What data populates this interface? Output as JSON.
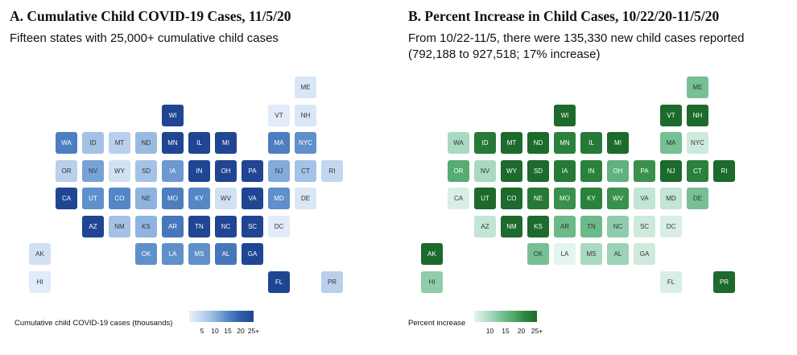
{
  "colors": {
    "blue_scale": [
      "#e8f0fb",
      "#c3d6ef",
      "#8fb4df",
      "#5487c6",
      "#2f5ea9",
      "#1f4593"
    ],
    "green_scale": [
      "#e4f4ee",
      "#b6e0cc",
      "#82c5a0",
      "#56ac72",
      "#2f8840",
      "#1c6a2c"
    ]
  },
  "chart_data": [
    {
      "type": "heatmap",
      "title": "A. Cumulative Child COVID-19 Cases, 11/5/20",
      "subtitle": "Fifteen states with 25,000+ cumulative child cases",
      "legend": {
        "label": "Cumulative child COVID-19 cases (thousands)",
        "ticks": [
          "5",
          "10",
          "15",
          "20",
          "25+"
        ],
        "range": [
          0,
          25
        ],
        "position": "bottom-left"
      },
      "states": [
        {
          "s": "ME",
          "row": 0,
          "col": 10,
          "v": 2
        },
        {
          "s": "WI",
          "row": 1,
          "col": 5,
          "v": 25
        },
        {
          "s": "VT",
          "row": 1,
          "col": 9,
          "v": 1
        },
        {
          "s": "NH",
          "row": 1,
          "col": 10,
          "v": 2
        },
        {
          "s": "WA",
          "row": 2,
          "col": 1,
          "v": 16
        },
        {
          "s": "ID",
          "row": 2,
          "col": 2,
          "v": 8
        },
        {
          "s": "MT",
          "row": 2,
          "col": 3,
          "v": 6
        },
        {
          "s": "ND",
          "row": 2,
          "col": 4,
          "v": 9
        },
        {
          "s": "MN",
          "row": 2,
          "col": 5,
          "v": 25
        },
        {
          "s": "IL",
          "row": 2,
          "col": 6,
          "v": 25
        },
        {
          "s": "MI",
          "row": 2,
          "col": 7,
          "v": 25
        },
        {
          "s": "MA",
          "row": 2,
          "col": 9,
          "v": 16
        },
        {
          "s": "NYC",
          "row": 2,
          "col": 10,
          "v": 14
        },
        {
          "s": "OR",
          "row": 3,
          "col": 1,
          "v": 6
        },
        {
          "s": "NV",
          "row": 3,
          "col": 2,
          "v": 12
        },
        {
          "s": "WY",
          "row": 3,
          "col": 3,
          "v": 3
        },
        {
          "s": "SD",
          "row": 3,
          "col": 4,
          "v": 8
        },
        {
          "s": "IA",
          "row": 3,
          "col": 5,
          "v": 13
        },
        {
          "s": "IN",
          "row": 3,
          "col": 6,
          "v": 25
        },
        {
          "s": "OH",
          "row": 3,
          "col": 7,
          "v": 25
        },
        {
          "s": "PA",
          "row": 3,
          "col": 8,
          "v": 25
        },
        {
          "s": "NJ",
          "row": 3,
          "col": 9,
          "v": 11
        },
        {
          "s": "CT",
          "row": 3,
          "col": 10,
          "v": 8
        },
        {
          "s": "RI",
          "row": 3,
          "col": 11,
          "v": 5
        },
        {
          "s": "CA",
          "row": 4,
          "col": 1,
          "v": 25
        },
        {
          "s": "UT",
          "row": 4,
          "col": 2,
          "v": 14
        },
        {
          "s": "CO",
          "row": 4,
          "col": 3,
          "v": 15
        },
        {
          "s": "NE",
          "row": 4,
          "col": 4,
          "v": 10
        },
        {
          "s": "MO",
          "row": 4,
          "col": 5,
          "v": 16
        },
        {
          "s": "KY",
          "row": 4,
          "col": 6,
          "v": 15
        },
        {
          "s": "WV",
          "row": 4,
          "col": 7,
          "v": 3
        },
        {
          "s": "VA",
          "row": 4,
          "col": 8,
          "v": 25
        },
        {
          "s": "MD",
          "row": 4,
          "col": 9,
          "v": 14
        },
        {
          "s": "DE",
          "row": 4,
          "col": 10,
          "v": 2
        },
        {
          "s": "AZ",
          "row": 5,
          "col": 2,
          "v": 25
        },
        {
          "s": "NM",
          "row": 5,
          "col": 3,
          "v": 8
        },
        {
          "s": "KS",
          "row": 5,
          "col": 4,
          "v": 10
        },
        {
          "s": "AR",
          "row": 5,
          "col": 5,
          "v": 17
        },
        {
          "s": "TN",
          "row": 5,
          "col": 6,
          "v": 25
        },
        {
          "s": "NC",
          "row": 5,
          "col": 7,
          "v": 25
        },
        {
          "s": "SC",
          "row": 5,
          "col": 8,
          "v": 25
        },
        {
          "s": "DC",
          "row": 5,
          "col": 9,
          "v": 1
        },
        {
          "s": "AK",
          "row": 6,
          "col": 0,
          "v": 3
        },
        {
          "s": "OK",
          "row": 6,
          "col": 4,
          "v": 14
        },
        {
          "s": "LA",
          "row": 6,
          "col": 5,
          "v": 14
        },
        {
          "s": "MS",
          "row": 6,
          "col": 6,
          "v": 14
        },
        {
          "s": "AL",
          "row": 6,
          "col": 7,
          "v": 17
        },
        {
          "s": "GA",
          "row": 6,
          "col": 8,
          "v": 25
        },
        {
          "s": "HI",
          "row": 7,
          "col": 0,
          "v": 1
        },
        {
          "s": "FL",
          "row": 7,
          "col": 9,
          "v": 25
        },
        {
          "s": "PR",
          "row": 7,
          "col": 11,
          "v": 6
        }
      ]
    },
    {
      "type": "heatmap",
      "title": "B. Percent Increase in Child Cases, 10/22/20-11/5/20",
      "subtitle": "From 10/22-11/5, there were 135,330 new child cases reported (792,188 to 927,518; 17% increase)",
      "legend": {
        "label": "Percent increase",
        "ticks": [
          "10",
          "15",
          "20",
          "25+"
        ],
        "range": [
          5,
          25
        ],
        "position": "bottom-left"
      },
      "states": [
        {
          "s": "ME",
          "row": 0,
          "col": 10,
          "v": 14
        },
        {
          "s": "WI",
          "row": 1,
          "col": 5,
          "v": 25
        },
        {
          "s": "VT",
          "row": 1,
          "col": 9,
          "v": 25
        },
        {
          "s": "NH",
          "row": 1,
          "col": 10,
          "v": 25
        },
        {
          "s": "WA",
          "row": 2,
          "col": 1,
          "v": 10
        },
        {
          "s": "ID",
          "row": 2,
          "col": 2,
          "v": 23
        },
        {
          "s": "MT",
          "row": 2,
          "col": 3,
          "v": 25
        },
        {
          "s": "ND",
          "row": 2,
          "col": 4,
          "v": 25
        },
        {
          "s": "MN",
          "row": 2,
          "col": 5,
          "v": 22
        },
        {
          "s": "IL",
          "row": 2,
          "col": 6,
          "v": 23
        },
        {
          "s": "MI",
          "row": 2,
          "col": 7,
          "v": 25
        },
        {
          "s": "MA",
          "row": 2,
          "col": 9,
          "v": 14
        },
        {
          "s": "NYC",
          "row": 2,
          "col": 10,
          "v": 7
        },
        {
          "s": "OR",
          "row": 3,
          "col": 1,
          "v": 17
        },
        {
          "s": "NV",
          "row": 3,
          "col": 2,
          "v": 10
        },
        {
          "s": "WY",
          "row": 3,
          "col": 3,
          "v": 25
        },
        {
          "s": "SD",
          "row": 3,
          "col": 4,
          "v": 25
        },
        {
          "s": "IA",
          "row": 3,
          "col": 5,
          "v": 23
        },
        {
          "s": "IN",
          "row": 3,
          "col": 6,
          "v": 22
        },
        {
          "s": "OH",
          "row": 3,
          "col": 7,
          "v": 16
        },
        {
          "s": "PA",
          "row": 3,
          "col": 8,
          "v": 20
        },
        {
          "s": "NJ",
          "row": 3,
          "col": 9,
          "v": 25
        },
        {
          "s": "CT",
          "row": 3,
          "col": 10,
          "v": 22
        },
        {
          "s": "RI",
          "row": 3,
          "col": 11,
          "v": 25
        },
        {
          "s": "CA",
          "row": 4,
          "col": 1,
          "v": 6
        },
        {
          "s": "UT",
          "row": 4,
          "col": 2,
          "v": 25
        },
        {
          "s": "CO",
          "row": 4,
          "col": 3,
          "v": 25
        },
        {
          "s": "NE",
          "row": 4,
          "col": 4,
          "v": 23
        },
        {
          "s": "MO",
          "row": 4,
          "col": 5,
          "v": 20
        },
        {
          "s": "KY",
          "row": 4,
          "col": 6,
          "v": 22
        },
        {
          "s": "WV",
          "row": 4,
          "col": 7,
          "v": 20
        },
        {
          "s": "VA",
          "row": 4,
          "col": 8,
          "v": 8
        },
        {
          "s": "MD",
          "row": 4,
          "col": 9,
          "v": 8
        },
        {
          "s": "DE",
          "row": 4,
          "col": 10,
          "v": 14
        },
        {
          "s": "AZ",
          "row": 5,
          "col": 2,
          "v": 8
        },
        {
          "s": "NM",
          "row": 5,
          "col": 3,
          "v": 25
        },
        {
          "s": "KS",
          "row": 5,
          "col": 4,
          "v": 25
        },
        {
          "s": "AR",
          "row": 5,
          "col": 5,
          "v": 15
        },
        {
          "s": "TN",
          "row": 5,
          "col": 6,
          "v": 15
        },
        {
          "s": "NC",
          "row": 5,
          "col": 7,
          "v": 12
        },
        {
          "s": "SC",
          "row": 5,
          "col": 8,
          "v": 7
        },
        {
          "s": "DC",
          "row": 5,
          "col": 9,
          "v": 6
        },
        {
          "s": "AK",
          "row": 6,
          "col": 0,
          "v": 25
        },
        {
          "s": "OK",
          "row": 6,
          "col": 4,
          "v": 14
        },
        {
          "s": "LA",
          "row": 6,
          "col": 5,
          "v": 5
        },
        {
          "s": "MS",
          "row": 6,
          "col": 6,
          "v": 10
        },
        {
          "s": "AL",
          "row": 6,
          "col": 7,
          "v": 11
        },
        {
          "s": "GA",
          "row": 6,
          "col": 8,
          "v": 7
        },
        {
          "s": "HI",
          "row": 7,
          "col": 0,
          "v": 12
        },
        {
          "s": "FL",
          "row": 7,
          "col": 9,
          "v": 6
        },
        {
          "s": "PR",
          "row": 7,
          "col": 11,
          "v": 25
        }
      ]
    }
  ]
}
